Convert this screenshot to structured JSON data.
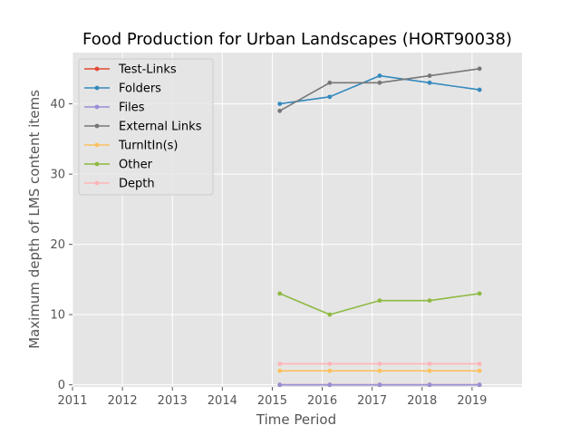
{
  "chart_data": {
    "type": "line",
    "title": "Food Production for Urban Landscapes (HORT90038)",
    "xlabel": "Time Period",
    "ylabel": "Maximum depth of LMS content items",
    "x_ticks": [
      "2011",
      "2012",
      "2013",
      "2014",
      "2015",
      "2016",
      "2017",
      "2018",
      "2019"
    ],
    "y_ticks": [
      "0",
      "10",
      "20",
      "30",
      "40"
    ],
    "xlim": [
      2011,
      2020
    ],
    "ylim": [
      -0.3,
      47.3
    ],
    "grid": true,
    "legend_position": "top-left",
    "x": [
      2015.15,
      2016.15,
      2017.15,
      2018.15,
      2019.15
    ],
    "series": [
      {
        "name": "Test-Links",
        "color": "#E24A33",
        "values": [
          0,
          0,
          0,
          0,
          0
        ]
      },
      {
        "name": "Folders",
        "color": "#348ABD",
        "values": [
          40,
          41,
          44,
          43,
          42
        ]
      },
      {
        "name": "Files",
        "color": "#988ED5",
        "values": [
          0,
          0,
          0,
          0,
          0
        ]
      },
      {
        "name": "External Links",
        "color": "#777777",
        "values": [
          39,
          43,
          43,
          44,
          45
        ]
      },
      {
        "name": "TurnItIn(s)",
        "color": "#FBC15E",
        "values": [
          2,
          2,
          2,
          2,
          2
        ]
      },
      {
        "name": "Other",
        "color": "#8EBA42",
        "values": [
          13,
          10,
          12,
          12,
          13
        ]
      },
      {
        "name": "Depth",
        "color": "#FFB5B8",
        "values": [
          3,
          3,
          3,
          3,
          3
        ]
      }
    ]
  }
}
